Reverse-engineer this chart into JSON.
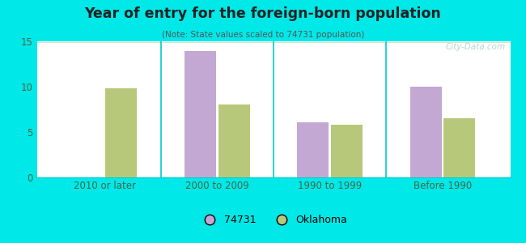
{
  "title": "Year of entry for the foreign-born population",
  "subtitle": "(Note: State values scaled to 74731 population)",
  "categories": [
    "2010 or later",
    "2000 to 2009",
    "1990 to 1999",
    "Before 1990"
  ],
  "values_74731": [
    0,
    13.9,
    6.1,
    10.0
  ],
  "values_oklahoma": [
    9.8,
    8.0,
    5.8,
    6.5
  ],
  "color_74731": "#c4a8d4",
  "color_oklahoma": "#b8c87a",
  "ylim": [
    0,
    15
  ],
  "yticks": [
    0,
    5,
    10,
    15
  ],
  "legend_74731": "74731",
  "legend_oklahoma": "Oklahoma",
  "background_outer": "#00e8e8",
  "background_inner_topleft": "#eaf5ea",
  "background_inner_topright": "#ddeef5",
  "background_inner_bottom": "#d0e8d0",
  "bar_width": 0.28,
  "watermark": "City-Data.com"
}
